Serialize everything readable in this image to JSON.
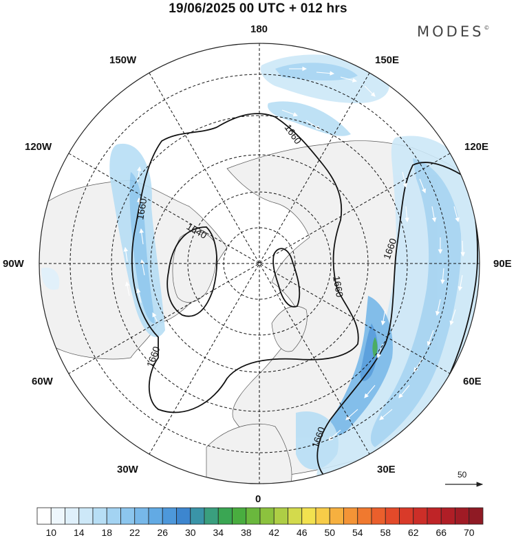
{
  "title": "19/06/2025  00 UTC  + 012 hrs",
  "brand": "MODES",
  "brand_mark": "©",
  "map": {
    "projection": "north-polar-stereographic",
    "longitude_labels": [
      {
        "id": "180",
        "text": "180"
      },
      {
        "id": "150E",
        "text": "150E"
      },
      {
        "id": "120E",
        "text": "120E"
      },
      {
        "id": "90E",
        "text": "90E"
      },
      {
        "id": "60E",
        "text": "60E"
      },
      {
        "id": "30E",
        "text": "30E"
      },
      {
        "id": "0",
        "text": "0"
      },
      {
        "id": "30W",
        "text": "30W"
      },
      {
        "id": "60W",
        "text": "60W"
      },
      {
        "id": "90W",
        "text": "90W"
      },
      {
        "id": "120W",
        "text": "120W"
      },
      {
        "id": "150W",
        "text": "150W"
      }
    ],
    "contour_labels": [
      "1660",
      "1660",
      "1640",
      "1660",
      "1660",
      "1660",
      "1660"
    ],
    "reference_vector": {
      "value": "50"
    }
  },
  "colorbar": {
    "labels": [
      "10",
      "14",
      "18",
      "22",
      "26",
      "30",
      "34",
      "38",
      "42",
      "46",
      "50",
      "54",
      "58",
      "62",
      "66",
      "70"
    ],
    "colors": [
      "#ffffff",
      "#eef7fd",
      "#dff0fb",
      "#cde8f8",
      "#b7def5",
      "#a3d3f2",
      "#8cc6ee",
      "#77b8e9",
      "#62aae4",
      "#4d98db",
      "#3d86cf",
      "#3a94a8",
      "#3a9f7e",
      "#3aa653",
      "#49ad3f",
      "#6ab83d",
      "#8cc23e",
      "#aece45",
      "#d3da4c",
      "#f2e14f",
      "#f7cc48",
      "#f6b03f",
      "#f49436",
      "#f0792f",
      "#ea5f2c",
      "#e34a2a",
      "#d93a29",
      "#cc2e28",
      "#bf2427",
      "#b01e26",
      "#a01b25",
      "#8f1a24"
    ]
  }
}
